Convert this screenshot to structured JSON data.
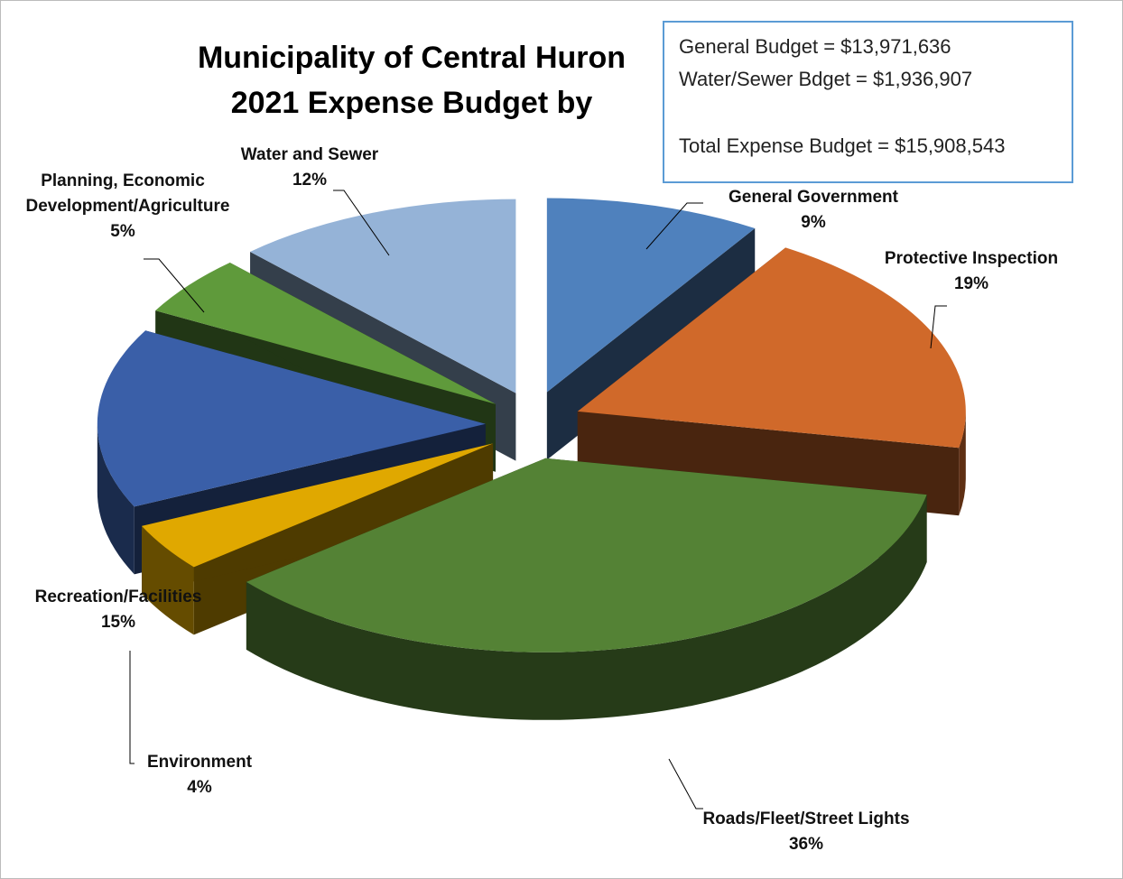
{
  "chart_data": {
    "type": "pie3d",
    "title": "Municipality of Central Huron\n2021 Expense Budget by",
    "categories": [
      "General Government",
      "Protective Inspection",
      "Roads/Fleet/Street Lights",
      "Environment",
      "Recreation/Facilities",
      "Planning, Economic Development/Agriculture",
      "Water and Sewer"
    ],
    "values": [
      9,
      19,
      36,
      4,
      15,
      5,
      12
    ],
    "value_labels": [
      "9%",
      "19%",
      "36%",
      "4%",
      "15%",
      "5%",
      "12%"
    ],
    "colors": [
      "#4f81bd",
      "#d0692a",
      "#548235",
      "#e0a800",
      "#3a5fa8",
      "#5f9a3b",
      "#95b3d7"
    ],
    "annotations": [
      "General Budget = $13,971,636",
      "Water/Sewer Bdget = $1,936,907",
      "Total Expense Budget = $15,908,543"
    ]
  }
}
